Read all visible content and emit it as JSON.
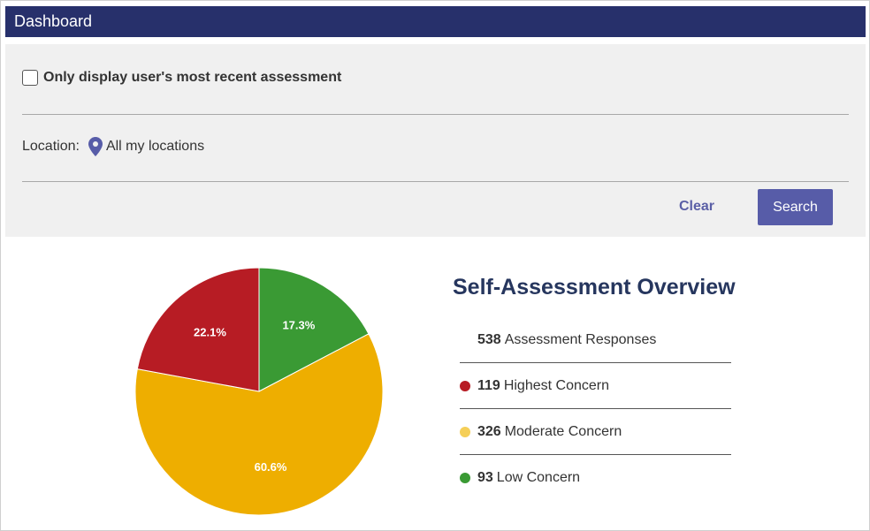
{
  "header": {
    "title": "Dashboard"
  },
  "filters": {
    "recent_only_label": "Only display user's most recent assessment",
    "location_label": "Location:",
    "location_value": "All my locations",
    "clear_label": "Clear",
    "search_label": "Search",
    "icons": {
      "location": "map-pin-icon"
    }
  },
  "overview": {
    "title": "Self-Assessment Overview",
    "stats": [
      {
        "count": "538",
        "label": "Assessment Responses",
        "color": ""
      },
      {
        "count": "119",
        "label": "Highest Concern",
        "color": "#b71c24"
      },
      {
        "count": "326",
        "label": "Moderate Concern",
        "color": "#f5cf58"
      },
      {
        "count": "93",
        "label": "Low Concern",
        "color": "#3a9a34"
      }
    ]
  },
  "chart_data": {
    "type": "pie",
    "categories": [
      "Low Concern",
      "Moderate Concern",
      "Highest Concern"
    ],
    "values": [
      17.3,
      60.6,
      22.1
    ],
    "labels": [
      "17.3%",
      "60.6%",
      "22.1%"
    ],
    "colors": [
      "#3a9a34",
      "#eeae00",
      "#b71c24"
    ],
    "title": ""
  },
  "colors": {
    "header_bg": "#27306b",
    "accent": "#575ca8",
    "title_text": "#26365e"
  }
}
